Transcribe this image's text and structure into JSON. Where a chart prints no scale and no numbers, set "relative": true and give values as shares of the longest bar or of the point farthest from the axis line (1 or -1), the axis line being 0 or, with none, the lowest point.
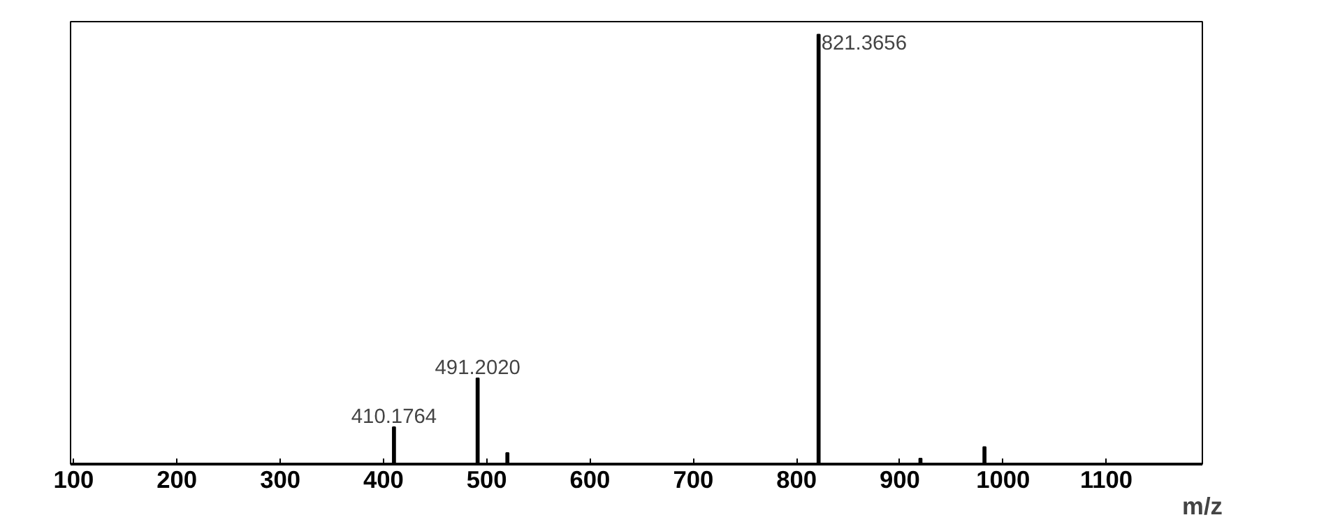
{
  "chart_data": {
    "type": "bar",
    "xlabel": "m/z",
    "relative": true,
    "tick_labels": "x",
    "grid": false,
    "color": "#000000",
    "x": [
      410.1764,
      491.202,
      520,
      821.3656,
      920,
      982
    ],
    "values": [
      0.086,
      0.2,
      0.026,
      1,
      0.013,
      0.04
    ],
    "xlim": [
      97,
      1193
    ],
    "xticks": [
      100,
      200,
      300,
      400,
      500,
      600,
      700,
      800,
      900,
      1000,
      1100
    ],
    "annotations": [
      {
        "text": "410.1764",
        "x": 410.1764,
        "y": 0.086
      },
      {
        "text": "491.2020",
        "x": 491.202,
        "y": 0.2
      },
      {
        "text": "821.3656",
        "x": 821.3656,
        "y": 1
      }
    ]
  }
}
